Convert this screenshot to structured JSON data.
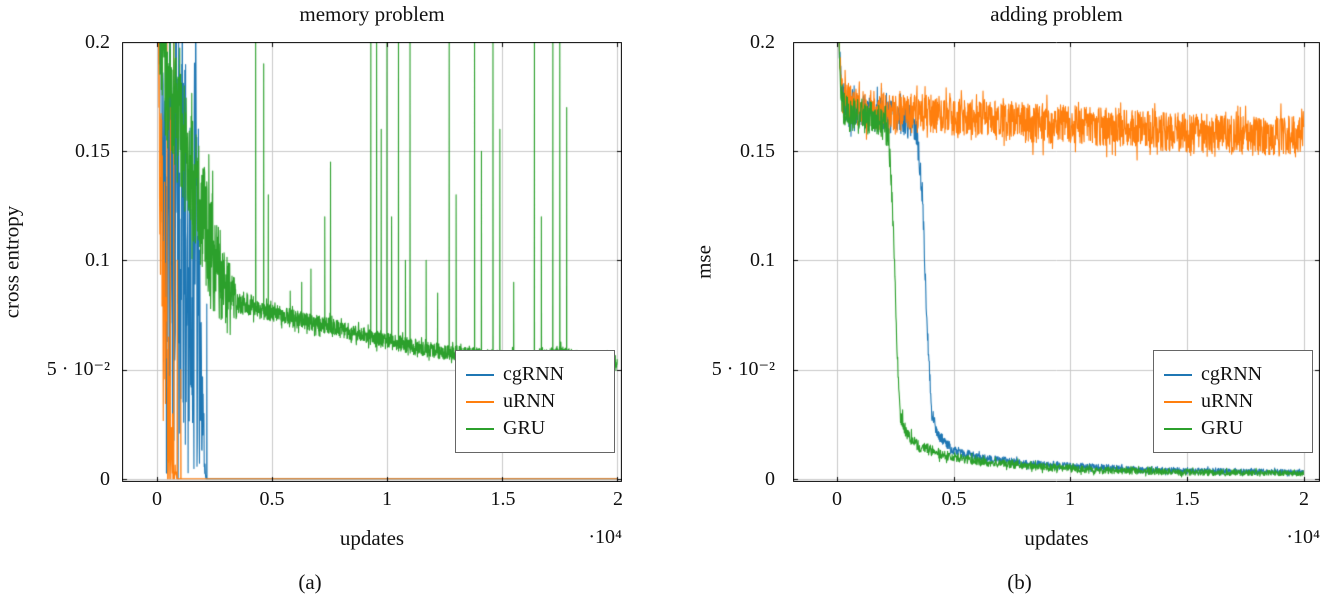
{
  "colors": {
    "grid": "#c8c8c8",
    "frame": "#000000",
    "cgRNN": "#1f77b4",
    "uRNN": "#ff7f0e",
    "GRU": "#2ca02c"
  },
  "chart_data": [
    {
      "type": "line",
      "title": "memory problem",
      "xlabel": "updates",
      "ylabel": "cross entropy",
      "x_scale_label": "·10⁴",
      "caption": "(a)",
      "xlim": [
        0,
        2
      ],
      "ylim": [
        0,
        0.2
      ],
      "xlim_draw": [
        -0.15,
        2.02
      ],
      "ylim_draw": [
        -0.0015,
        0.2
      ],
      "xticks": [
        "0",
        "0.5",
        "1",
        "1.5",
        "2"
      ],
      "yticks": [
        "0",
        "5 · 10⁻²",
        "0.1",
        "0.15",
        "0.2"
      ],
      "xtick_values": [
        0,
        0.5,
        1,
        1.5,
        2
      ],
      "ytick_values": [
        0,
        0.05,
        0.1,
        0.15,
        0.2
      ],
      "grid": true,
      "legend_position": "bottom-right",
      "series": [
        {
          "name": "cgRNN",
          "color": "#1f77b4",
          "seed": 101,
          "samples": 1800,
          "points": [
            [
              0,
              0.28
            ],
            [
              0.015,
              0.2
            ],
            [
              0.04,
              0.11
            ],
            [
              0.17,
              0.1
            ],
            [
              0.195,
              0.05
            ],
            [
              0.21,
              0.005
            ],
            [
              0.215,
              0
            ],
            [
              2,
              0
            ]
          ],
          "noise": [
            [
              0,
              0.01
            ],
            [
              0.03,
              0.06
            ],
            [
              0.05,
              0.1
            ],
            [
              0.18,
              0.1
            ],
            [
              0.2,
              0.02
            ],
            [
              0.213,
              0.002
            ],
            [
              0.215,
              0
            ],
            [
              2,
              0
            ]
          ],
          "spikes": [
            [
              0.218,
              0.08,
              0.004
            ]
          ]
        },
        {
          "name": "uRNN",
          "color": "#ff7f0e",
          "seed": 202,
          "samples": 1600,
          "points": [
            [
              0,
              0.3
            ],
            [
              0.01,
              0.17
            ],
            [
              0.03,
              0.07
            ],
            [
              0.055,
              0.02
            ],
            [
              0.075,
              0.003
            ],
            [
              0.09,
              0
            ],
            [
              2,
              0
            ]
          ],
          "noise": [
            [
              0,
              0.015
            ],
            [
              0.02,
              0.06
            ],
            [
              0.05,
              0.045
            ],
            [
              0.075,
              0.01
            ],
            [
              0.09,
              0
            ],
            [
              2,
              0
            ]
          ],
          "spikes": [
            [
              0.045,
              0.2,
              0.007
            ],
            [
              0.06,
              0.17,
              0.006
            ],
            [
              0.075,
              0.2,
              0.006
            ],
            [
              0.09,
              0.1,
              0.005
            ],
            [
              0.105,
              0.05,
              0.004
            ]
          ]
        },
        {
          "name": "GRU",
          "color": "#2ca02c",
          "seed": 303,
          "samples": 2200,
          "points": [
            [
              0,
              0.27
            ],
            [
              0.02,
              0.2
            ],
            [
              0.05,
              0.175
            ],
            [
              0.1,
              0.16
            ],
            [
              0.15,
              0.14
            ],
            [
              0.2,
              0.12
            ],
            [
              0.25,
              0.1
            ],
            [
              0.3,
              0.088
            ],
            [
              0.35,
              0.08
            ],
            [
              0.45,
              0.077
            ],
            [
              0.55,
              0.075
            ],
            [
              0.65,
              0.072
            ],
            [
              0.75,
              0.07
            ],
            [
              0.85,
              0.067
            ],
            [
              0.95,
              0.064
            ],
            [
              1.05,
              0.062
            ],
            [
              1.15,
              0.06
            ],
            [
              1.25,
              0.058
            ],
            [
              1.35,
              0.057
            ],
            [
              1.45,
              0.056
            ],
            [
              1.55,
              0.055
            ],
            [
              1.65,
              0.055
            ],
            [
              1.75,
              0.058
            ],
            [
              1.85,
              0.055
            ],
            [
              2,
              0.054
            ]
          ],
          "noise": [
            [
              0,
              0.02
            ],
            [
              0.05,
              0.03
            ],
            [
              0.25,
              0.025
            ],
            [
              0.33,
              0.012
            ],
            [
              0.36,
              0.004
            ],
            [
              2,
              0.003
            ]
          ],
          "spikes": [
            [
              0.43,
              0.21,
              0.01
            ],
            [
              0.465,
              0.19,
              0.008
            ],
            [
              0.485,
              0.13,
              0.006
            ],
            [
              0.58,
              0.086,
              0.006
            ],
            [
              0.63,
              0.09,
              0.006
            ],
            [
              0.67,
              0.096,
              0.007
            ],
            [
              0.73,
              0.12,
              0.008
            ],
            [
              0.755,
              0.145,
              0.006
            ],
            [
              0.93,
              0.21,
              0.009
            ],
            [
              0.955,
              0.21,
              0.008
            ],
            [
              0.975,
              0.16,
              0.006
            ],
            [
              1.0,
              0.21,
              0.008
            ],
            [
              1.02,
              0.12,
              0.006
            ],
            [
              1.05,
              0.21,
              0.008
            ],
            [
              1.08,
              0.1,
              0.006
            ],
            [
              1.1,
              0.21,
              0.008
            ],
            [
              1.17,
              0.1,
              0.006
            ],
            [
              1.22,
              0.085,
              0.005
            ],
            [
              1.27,
              0.21,
              0.009
            ],
            [
              1.3,
              0.13,
              0.006
            ],
            [
              1.38,
              0.21,
              0.009
            ],
            [
              1.41,
              0.15,
              0.006
            ],
            [
              1.46,
              0.21,
              0.009
            ],
            [
              1.49,
              0.16,
              0.006
            ],
            [
              1.55,
              0.09,
              0.006
            ],
            [
              1.64,
              0.21,
              0.009
            ],
            [
              1.67,
              0.12,
              0.006
            ],
            [
              1.72,
              0.21,
              0.009
            ],
            [
              1.75,
              0.21,
              0.009
            ],
            [
              1.78,
              0.17,
              0.007
            ]
          ]
        }
      ]
    },
    {
      "type": "line",
      "title": "adding problem",
      "xlabel": "updates",
      "ylabel": "mse",
      "x_scale_label": "·10⁴",
      "caption": "(b)",
      "xlim": [
        0,
        2
      ],
      "ylim": [
        0,
        0.2
      ],
      "xlim_draw": [
        -0.19,
        2.07
      ],
      "ylim_draw": [
        -0.0015,
        0.2
      ],
      "xticks": [
        "0",
        "0.5",
        "1",
        "1.5",
        "2"
      ],
      "yticks": [
        "0",
        "5 · 10⁻²",
        "0.1",
        "0.15",
        "0.2"
      ],
      "xtick_values": [
        0,
        0.5,
        1,
        1.5,
        2
      ],
      "ytick_values": [
        0,
        0.05,
        0.1,
        0.15,
        0.2
      ],
      "grid": true,
      "legend_position": "bottom-right",
      "series": [
        {
          "name": "cgRNN",
          "color": "#1f77b4",
          "seed": 404,
          "samples": 1500,
          "points": [
            [
              0,
              0.27
            ],
            [
              0.008,
              0.2
            ],
            [
              0.02,
              0.175
            ],
            [
              0.05,
              0.169
            ],
            [
              0.15,
              0.167
            ],
            [
              0.3,
              0.165
            ],
            [
              0.34,
              0.16
            ],
            [
              0.365,
              0.13
            ],
            [
              0.385,
              0.07
            ],
            [
              0.405,
              0.03
            ],
            [
              0.43,
              0.02
            ],
            [
              0.5,
              0.013
            ],
            [
              0.6,
              0.01
            ],
            [
              0.8,
              0.007
            ],
            [
              1.0,
              0.006
            ],
            [
              1.3,
              0.004
            ],
            [
              1.6,
              0.0035
            ],
            [
              2,
              0.003
            ]
          ],
          "noise": [
            [
              0,
              0.004
            ],
            [
              0.02,
              0.008
            ],
            [
              0.32,
              0.008
            ],
            [
              0.37,
              0.005
            ],
            [
              0.43,
              0.0025
            ],
            [
              0.6,
              0.0018
            ],
            [
              2,
              0.0012
            ]
          ],
          "spikes": []
        },
        {
          "name": "uRNN",
          "color": "#ff7f0e",
          "seed": 505,
          "samples": 1700,
          "points": [
            [
              0,
              0.28
            ],
            [
              0.008,
              0.2
            ],
            [
              0.02,
              0.176
            ],
            [
              0.06,
              0.171
            ],
            [
              0.2,
              0.168
            ],
            [
              0.4,
              0.167
            ],
            [
              0.6,
              0.165
            ],
            [
              0.8,
              0.163
            ],
            [
              1.0,
              0.162
            ],
            [
              1.2,
              0.161
            ],
            [
              1.4,
              0.159
            ],
            [
              1.6,
              0.158
            ],
            [
              1.8,
              0.157
            ],
            [
              2,
              0.158
            ]
          ],
          "noise": [
            [
              0,
              0.004
            ],
            [
              0.02,
              0.009
            ],
            [
              2,
              0.009
            ]
          ],
          "spikes": []
        },
        {
          "name": "GRU",
          "color": "#2ca02c",
          "seed": 606,
          "samples": 1500,
          "points": [
            [
              0,
              0.27
            ],
            [
              0.008,
              0.19
            ],
            [
              0.02,
              0.17
            ],
            [
              0.05,
              0.167
            ],
            [
              0.18,
              0.165
            ],
            [
              0.22,
              0.158
            ],
            [
              0.24,
              0.12
            ],
            [
              0.255,
              0.06
            ],
            [
              0.27,
              0.03
            ],
            [
              0.3,
              0.02
            ],
            [
              0.35,
              0.015
            ],
            [
              0.45,
              0.011
            ],
            [
              0.6,
              0.008
            ],
            [
              0.8,
              0.006
            ],
            [
              1.1,
              0.004
            ],
            [
              1.5,
              0.003
            ],
            [
              2,
              0.0025
            ]
          ],
          "noise": [
            [
              0,
              0.004
            ],
            [
              0.02,
              0.008
            ],
            [
              0.21,
              0.008
            ],
            [
              0.25,
              0.005
            ],
            [
              0.3,
              0.003
            ],
            [
              0.5,
              0.002
            ],
            [
              2,
              0.0012
            ]
          ],
          "spikes": []
        }
      ]
    }
  ]
}
